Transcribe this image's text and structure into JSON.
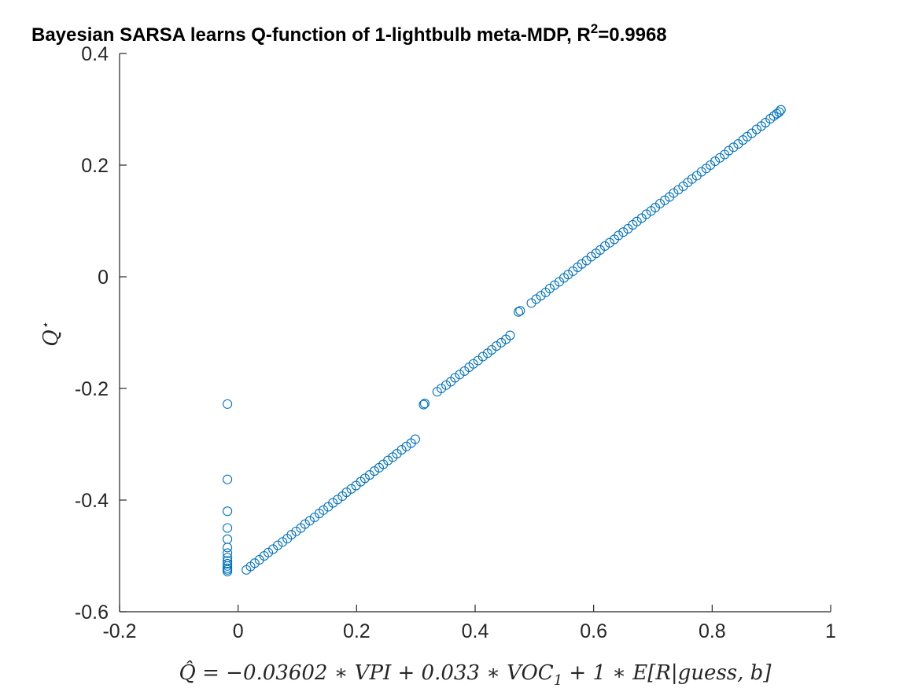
{
  "chart_data": {
    "type": "scatter",
    "title": {
      "main": "Bayesian SARSA learns Q-function of 1-lightbulb meta-MDP, R",
      "superscript": "2",
      "suffix": "=0.9968"
    },
    "xlabel": {
      "lhs": "Q̂",
      "rest": " = −0.03602 ∗ VPI + 0.033 ∗ VOC",
      "subscript": "1",
      "tail": " + 1 ∗ E[R|guess, b]"
    },
    "ylabel": {
      "base": "Q",
      "superscript": "⋆"
    },
    "xlim": [
      -0.2,
      1
    ],
    "ylim": [
      -0.6,
      0.4
    ],
    "xticks": [
      -0.2,
      0,
      0.2,
      0.4,
      0.6,
      0.8,
      1
    ],
    "yticks": [
      -0.6,
      -0.4,
      -0.2,
      0,
      0.2,
      0.4
    ],
    "xtick_labels": [
      "-0.2",
      "0",
      "0.2",
      "0.4",
      "0.6",
      "0.8",
      "1"
    ],
    "ytick_labels": [
      "-0.6",
      "-0.4",
      "-0.2",
      "0",
      "0.2",
      "0.4"
    ],
    "grid": false,
    "marker": "open-circle",
    "color": "#0072BD",
    "series": [
      {
        "x": [
          -0.018,
          -0.018,
          -0.018,
          -0.018,
          -0.018,
          -0.018,
          -0.018,
          -0.018,
          -0.018,
          -0.018,
          -0.018,
          -0.018,
          -0.018,
          -0.018,
          0.014,
          0.021,
          0.028,
          0.036,
          0.044,
          0.051,
          0.059,
          0.067,
          0.075,
          0.083,
          0.09,
          0.098,
          0.106,
          0.113,
          0.121,
          0.129,
          0.137,
          0.144,
          0.152,
          0.16,
          0.168,
          0.176,
          0.183,
          0.191,
          0.199,
          0.207,
          0.214,
          0.222,
          0.23,
          0.238,
          0.245,
          0.253,
          0.261,
          0.268,
          0.276,
          0.284,
          0.292,
          0.299,
          0.313,
          0.315,
          0.336,
          0.343,
          0.351,
          0.359,
          0.366,
          0.374,
          0.382,
          0.39,
          0.397,
          0.405,
          0.413,
          0.421,
          0.428,
          0.436,
          0.444,
          0.452,
          0.459,
          0.473,
          0.476,
          0.495,
          0.503,
          0.511,
          0.519,
          0.526,
          0.534,
          0.542,
          0.55,
          0.557,
          0.565,
          0.573,
          0.58,
          0.588,
          0.596,
          0.604,
          0.611,
          0.619,
          0.627,
          0.635,
          0.642,
          0.65,
          0.658,
          0.666,
          0.673,
          0.681,
          0.689,
          0.697,
          0.704,
          0.712,
          0.72,
          0.728,
          0.735,
          0.743,
          0.751,
          0.759,
          0.766,
          0.774,
          0.782,
          0.79,
          0.797,
          0.805,
          0.813,
          0.821,
          0.828,
          0.836,
          0.844,
          0.852,
          0.859,
          0.867,
          0.875,
          0.883,
          0.89,
          0.898,
          0.904,
          0.909,
          0.913,
          0.916
        ],
        "y": [
          -0.228,
          -0.363,
          -0.42,
          -0.45,
          -0.47,
          -0.485,
          -0.495,
          -0.503,
          -0.509,
          -0.514,
          -0.518,
          -0.522,
          -0.525,
          -0.528,
          -0.525,
          -0.519,
          -0.513,
          -0.507,
          -0.5,
          -0.494,
          -0.488,
          -0.481,
          -0.475,
          -0.469,
          -0.462,
          -0.456,
          -0.45,
          -0.443,
          -0.437,
          -0.431,
          -0.424,
          -0.418,
          -0.412,
          -0.405,
          -0.399,
          -0.393,
          -0.386,
          -0.38,
          -0.374,
          -0.367,
          -0.361,
          -0.355,
          -0.348,
          -0.342,
          -0.336,
          -0.329,
          -0.323,
          -0.317,
          -0.31,
          -0.304,
          -0.298,
          -0.291,
          -0.229,
          -0.227,
          -0.206,
          -0.2,
          -0.194,
          -0.188,
          -0.181,
          -0.175,
          -0.169,
          -0.162,
          -0.156,
          -0.15,
          -0.143,
          -0.137,
          -0.131,
          -0.124,
          -0.118,
          -0.112,
          -0.105,
          -0.063,
          -0.061,
          -0.047,
          -0.04,
          -0.034,
          -0.028,
          -0.021,
          -0.015,
          -0.009,
          -0.002,
          0.004,
          0.01,
          0.017,
          0.023,
          0.029,
          0.036,
          0.042,
          0.048,
          0.055,
          0.061,
          0.067,
          0.074,
          0.08,
          0.086,
          0.093,
          0.099,
          0.105,
          0.112,
          0.118,
          0.124,
          0.131,
          0.137,
          0.143,
          0.15,
          0.156,
          0.162,
          0.169,
          0.175,
          0.181,
          0.188,
          0.194,
          0.2,
          0.207,
          0.213,
          0.219,
          0.226,
          0.232,
          0.238,
          0.245,
          0.251,
          0.257,
          0.264,
          0.27,
          0.276,
          0.283,
          0.288,
          0.292,
          0.295,
          0.299
        ]
      }
    ]
  }
}
